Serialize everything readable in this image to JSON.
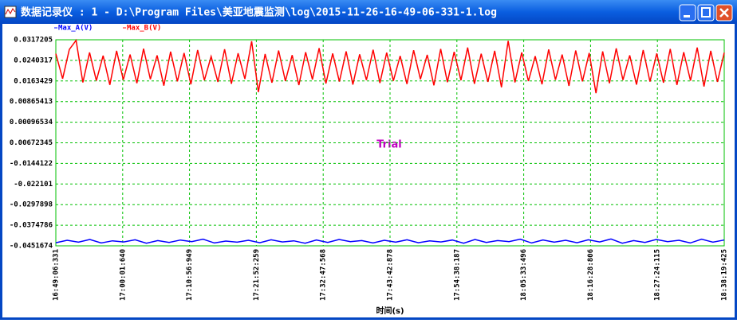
{
  "window": {
    "title": "数据记录仪 : 1 - D:\\Program Files\\美亚地震监测\\log\\2015-11-26-16-49-06-331-1.log"
  },
  "chart_data": {
    "type": "line",
    "annotation": "Trial",
    "xlabel": "时间(s)",
    "ylim": [
      -0.0451674,
      0.0317205
    ],
    "yticks": [
      0.0317205,
      0.0240317,
      0.0163429,
      0.00865413,
      0.00096534,
      {
        "value": -0.00672345,
        "label": "0.00672345"
      },
      -0.0144122,
      -0.022101,
      -0.0297898,
      -0.0374786,
      -0.0451674
    ],
    "xticks": [
      "16:49:06:331",
      "17:00:01:640",
      "17:10:56:949",
      "17:21:52:259",
      "17:32:47:568",
      "17:43:42:878",
      "17:54:38:187",
      "18:05:33:496",
      "18:16:28:806",
      "18:27:24:115",
      "18:38:19:425"
    ],
    "grid": true,
    "series": [
      {
        "name": "Max_A(V)",
        "color": "#0000ff",
        "values": [
          -0.044,
          -0.0431,
          -0.0438,
          -0.0428,
          -0.0441,
          -0.0433,
          -0.0437,
          -0.0429,
          -0.0442,
          -0.0432,
          -0.0439,
          -0.043,
          -0.0436,
          -0.0427,
          -0.0441,
          -0.0434,
          -0.0438,
          -0.0431,
          -0.044,
          -0.0429,
          -0.0437,
          -0.0433,
          -0.0442,
          -0.043,
          -0.0439,
          -0.0428,
          -0.0436,
          -0.0432,
          -0.0441,
          -0.0431,
          -0.0438,
          -0.0429,
          -0.044,
          -0.0433,
          -0.0437,
          -0.043,
          -0.0442,
          -0.0428,
          -0.0439,
          -0.0432,
          -0.0436,
          -0.0427,
          -0.0441,
          -0.043,
          -0.0438,
          -0.0431,
          -0.044,
          -0.0429,
          -0.0437,
          -0.0426,
          -0.0442,
          -0.0432,
          -0.0439,
          -0.0428,
          -0.0436,
          -0.0431,
          -0.0441,
          -0.0427,
          -0.0438,
          -0.043
        ]
      },
      {
        "name": "Max_B(V)",
        "color": "#ff0000",
        "values": [
          0.0265,
          0.0172,
          0.0281,
          0.0315,
          0.0158,
          0.027,
          0.0165,
          0.0258,
          0.0149,
          0.0276,
          0.0168,
          0.0262,
          0.0155,
          0.0284,
          0.017,
          0.0259,
          0.0146,
          0.0273,
          0.0162,
          0.0268,
          0.0151,
          0.0279,
          0.0166,
          0.0255,
          0.016,
          0.0282,
          0.0153,
          0.0267,
          0.0171,
          0.0312,
          0.0122,
          0.0264,
          0.0157,
          0.0277,
          0.0163,
          0.026,
          0.0148,
          0.0271,
          0.0169,
          0.0286,
          0.0154,
          0.0266,
          0.0161,
          0.0274,
          0.015,
          0.0263,
          0.0167,
          0.028,
          0.0156,
          0.0269,
          0.0164,
          0.0257,
          0.0152,
          0.0278,
          0.017,
          0.0261,
          0.0147,
          0.0283,
          0.0159,
          0.0272,
          0.0166,
          0.0288,
          0.0153,
          0.0265,
          0.016,
          0.0276,
          0.014,
          0.0313,
          0.0158,
          0.027,
          0.0163,
          0.0256,
          0.0151,
          0.0281,
          0.0168,
          0.0262,
          0.0145,
          0.0277,
          0.0162,
          0.0268,
          0.0118,
          0.0274,
          0.0155,
          0.0285,
          0.0167,
          0.0259,
          0.015,
          0.0279,
          0.0161,
          0.0266,
          0.0157,
          0.0283,
          0.0149,
          0.0271,
          0.0165,
          0.0288,
          0.0143,
          0.0276,
          0.016,
          0.0269
        ]
      }
    ]
  }
}
